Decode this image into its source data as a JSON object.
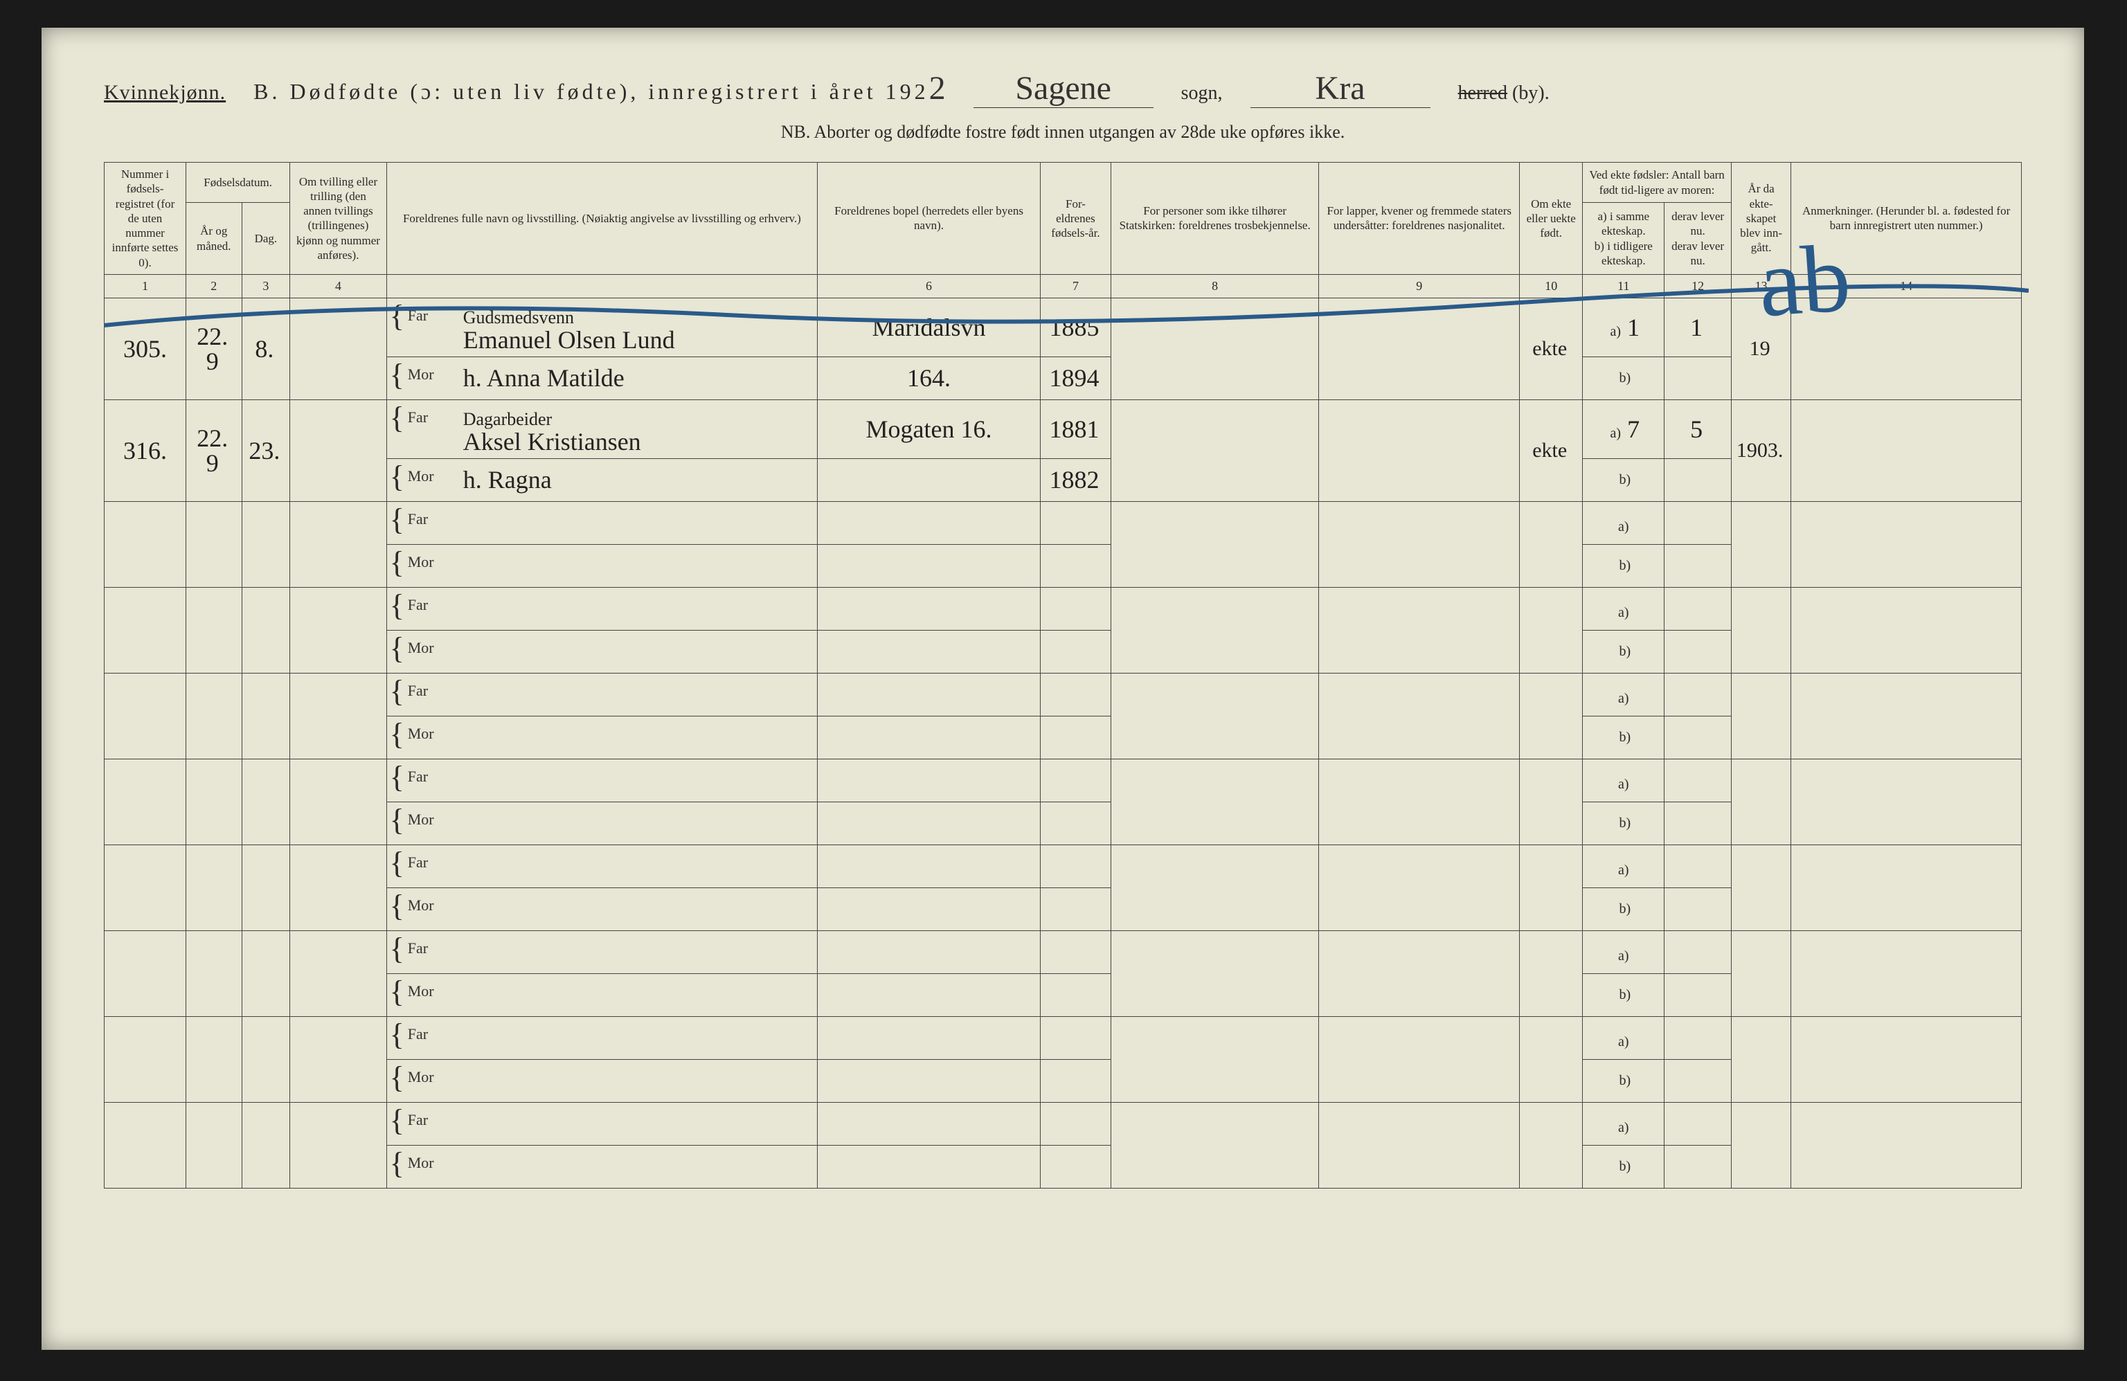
{
  "header": {
    "gender": "Kvinnekjønn.",
    "title_prefix": "B.  Dødfødte (ɔ: uten liv fødte), innregistrert i året 192",
    "year_suffix": "2",
    "parish_label": "sogn,",
    "parish": "Sagene",
    "district": "Kra",
    "herred": "herred",
    "by": " (by).",
    "subtitle": "NB.  Aborter og dødfødte fostre født innen utgangen av 28de uke opføres ikke."
  },
  "columns": {
    "c1": "Nummer i fødsels-registret (for de uten nummer innførte settes 0).",
    "c2g": "Fødselsdatum.",
    "c2a": "År og måned.",
    "c2b": "Dag.",
    "c3": "Om tvilling eller trilling (den annen tvillings (trillingenes) kjønn og nummer anføres).",
    "c4": "Foreldrenes fulle navn og livsstilling. (Nøiaktig angivelse av livsstilling og erhverv.)",
    "c5": "Foreldrenes bopel (herredets eller byens navn).",
    "c6": "For-eldrenes fødsels-år.",
    "c7": "For personer som ikke tilhører Statskirken: foreldrenes trosbekjennelse.",
    "c8": "For lapper, kvener og fremmede staters undersåtter: foreldrenes nasjonalitet.",
    "c9": "Om ekte eller uekte født.",
    "c10g": "Ved ekte fødsler: Antall barn født tid-ligere av moren:",
    "c10a": "a) i samme ekteskap.",
    "c10b": "b) i tidligere ekteskap.",
    "c11a": "derav lever nu.",
    "c11b": "derav lever nu.",
    "c12": "År da ekte-skapet blev inn-gått.",
    "c13": "Anmerkninger. (Herunder bl. a. fødested for barn innregistrert uten nummer.)"
  },
  "colnums": [
    "1",
    "2",
    "3",
    "4",
    "",
    "6",
    "7",
    "8",
    "9",
    "10",
    "11",
    "12",
    "13",
    "14"
  ],
  "far": "Far",
  "mor": "Mor",
  "annotation_large": "ab",
  "rows": [
    {
      "num": "305.",
      "ym": "22. 9",
      "day": "8.",
      "far_occ": "Gudsmedsvenn",
      "far_name": "Emanuel Olsen Lund",
      "mor_name": "h. Anna Matilde",
      "bopel_far": "Maridalsvn",
      "bopel_mor": "164.",
      "far_year": "1885",
      "mor_year": "1894",
      "ekte": "ekte",
      "a": "1",
      "a_lever": "1",
      "year_m": "19",
      "anm": ""
    },
    {
      "num": "316.",
      "ym": "22. 9",
      "day": "23.",
      "far_occ": "Dagarbeider",
      "far_name": "Aksel Kristiansen",
      "mor_name": "h. Ragna",
      "bopel_far": "Mogaten 16.",
      "bopel_mor": "",
      "far_year": "1881",
      "mor_year": "1882",
      "ekte": "ekte",
      "a": "7",
      "a_lever": "5",
      "year_m": "1903.",
      "anm": ""
    }
  ],
  "empty_count": 8,
  "ab_labels": {
    "a": "a)",
    "b": "b)"
  },
  "colors": {
    "page": "#e8e6d4",
    "ink": "#2a2a2a",
    "blue": "#2a5a8a",
    "border": "#444"
  }
}
